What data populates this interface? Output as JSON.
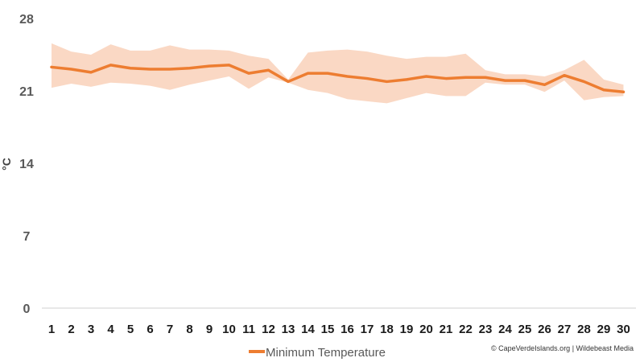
{
  "chart_data": {
    "type": "line",
    "title": "",
    "xlabel": "",
    "ylabel": "°C",
    "x": [
      1,
      2,
      3,
      4,
      5,
      6,
      7,
      8,
      9,
      10,
      11,
      12,
      13,
      14,
      15,
      16,
      17,
      18,
      19,
      20,
      21,
      22,
      23,
      24,
      25,
      26,
      27,
      28,
      29,
      30
    ],
    "ylim": [
      0,
      28
    ],
    "yticks": [
      "0",
      "7",
      "14",
      "21",
      "28"
    ],
    "grid": false,
    "legend": "bottom",
    "series": [
      {
        "name": "Minimum Temperature",
        "color": "#ED7D31",
        "values": [
          23.3,
          23.1,
          22.8,
          23.5,
          23.2,
          23.1,
          23.1,
          23.2,
          23.4,
          23.5,
          22.7,
          23.0,
          21.9,
          22.7,
          22.7,
          22.4,
          22.2,
          21.9,
          22.1,
          22.4,
          22.2,
          22.3,
          22.3,
          22.0,
          22.0,
          21.6,
          22.5,
          21.9,
          21.1,
          20.9
        ]
      }
    ],
    "range_band": {
      "color": "#FAD8C4",
      "upper": [
        25.6,
        24.8,
        24.5,
        25.5,
        24.9,
        24.9,
        25.4,
        25.0,
        25.0,
        24.9,
        24.4,
        24.1,
        22.1,
        24.7,
        24.9,
        25.0,
        24.8,
        24.4,
        24.1,
        24.3,
        24.3,
        24.6,
        23.0,
        22.6,
        22.6,
        22.4,
        23.0,
        24.0,
        22.1,
        21.6
      ],
      "lower": [
        21.3,
        21.7,
        21.4,
        21.8,
        21.7,
        21.5,
        21.1,
        21.6,
        22.0,
        22.4,
        21.2,
        22.3,
        21.8,
        21.1,
        20.8,
        20.2,
        20.0,
        19.8,
        20.3,
        20.8,
        20.5,
        20.5,
        21.8,
        21.6,
        21.6,
        20.9,
        22.0,
        20.1,
        20.4,
        20.5
      ]
    }
  },
  "credit": "© CapeVerdeIslands.org | Wildebeast Media"
}
